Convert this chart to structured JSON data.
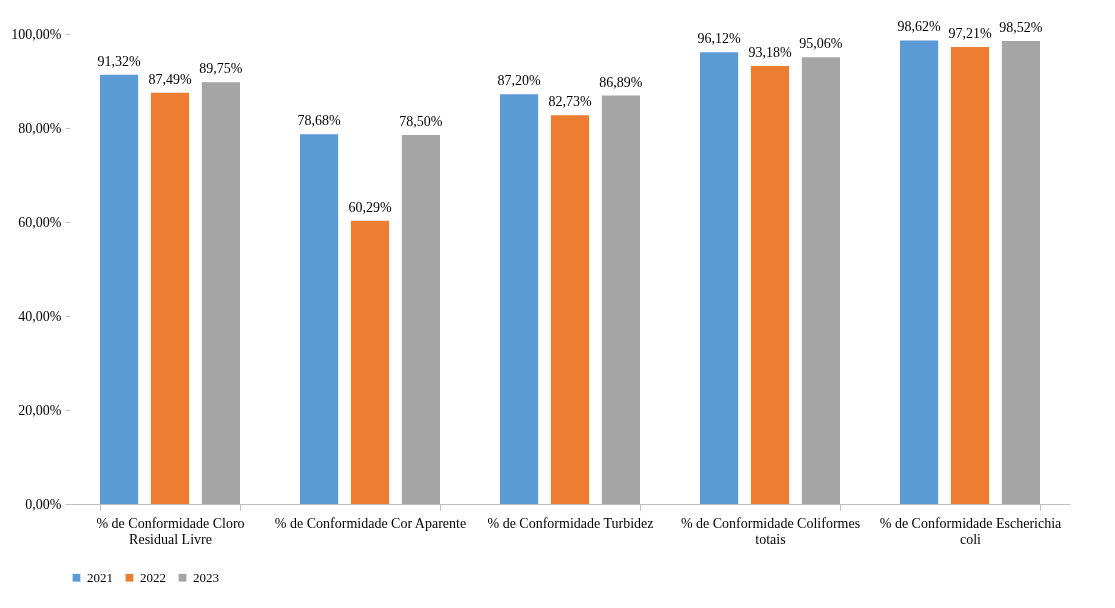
{
  "chart_data": {
    "type": "bar",
    "categories": [
      "% de Conformidade Cloro Residual Livre",
      "% de Conformidade Cor Aparente",
      "% de Conformidade Turbidez",
      "% de Conformidade Coliformes totais",
      "% de Conformidade Escherichia coli"
    ],
    "series": [
      {
        "name": "2021",
        "color": "#5b9bd5",
        "values": [
          91.32,
          78.68,
          87.2,
          96.12,
          98.62
        ],
        "value_labels": [
          "91,32%",
          "78,68%",
          "87,20%",
          "96,12%",
          "98,62%"
        ]
      },
      {
        "name": "2022",
        "color": "#ed7d31",
        "values": [
          87.49,
          60.29,
          82.73,
          93.18,
          97.21
        ],
        "value_labels": [
          "87,49%",
          "60,29%",
          "82,73%",
          "93,18%",
          "97,21%"
        ]
      },
      {
        "name": "2023",
        "color": "#a5a5a5",
        "values": [
          89.75,
          78.5,
          86.89,
          95.06,
          98.52
        ],
        "value_labels": [
          "89,75%",
          "78,50%",
          "86,89%",
          "95,06%",
          "98,52%"
        ]
      }
    ],
    "ylim": [
      0,
      100
    ],
    "yticks": [
      {
        "value": 0,
        "label": "0,00%"
      },
      {
        "value": 20,
        "label": "20,00%"
      },
      {
        "value": 40,
        "label": "40,00%"
      },
      {
        "value": 60,
        "label": "60,00%"
      },
      {
        "value": 80,
        "label": "80,00%"
      },
      {
        "value": 100,
        "label": "100,00%"
      }
    ],
    "grid": false,
    "legend": "bottom"
  }
}
